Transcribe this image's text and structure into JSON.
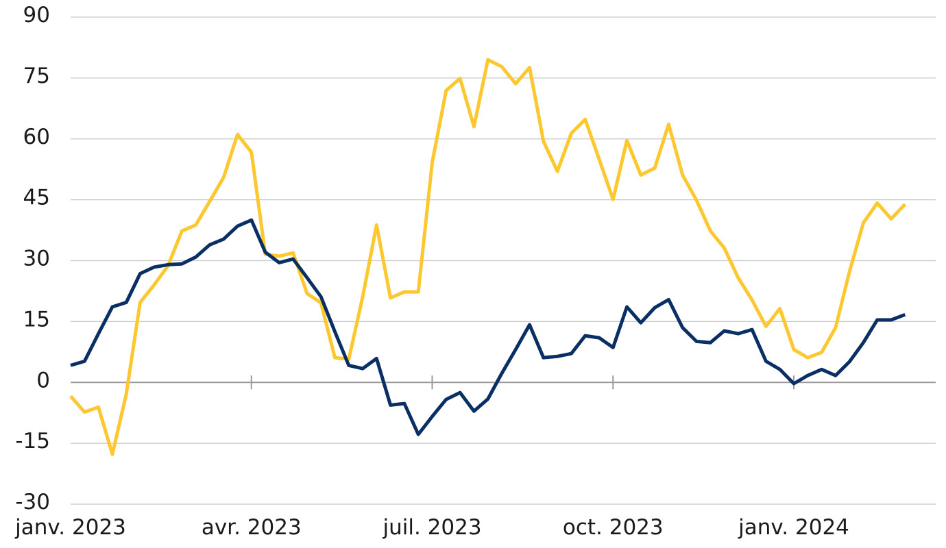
{
  "chart_data": {
    "type": "line",
    "categories": [
      "janv. 2023",
      null,
      null,
      null,
      null,
      null,
      null,
      null,
      null,
      null,
      null,
      null,
      null,
      "avr. 2023",
      null,
      null,
      null,
      null,
      null,
      null,
      null,
      null,
      null,
      null,
      null,
      null,
      "juil. 2023",
      null,
      null,
      null,
      null,
      null,
      null,
      null,
      null,
      null,
      null,
      null,
      null,
      "oct. 2023",
      null,
      null,
      null,
      null,
      null,
      null,
      null,
      null,
      null,
      null,
      null,
      null,
      "janv. 2024",
      null,
      null,
      null,
      null,
      null,
      null,
      null,
      null
    ],
    "series": [
      {
        "color": "#0a2f64",
        "values": [
          4.2,
          5.2,
          12,
          18.6,
          19.7,
          26.8,
          28.4,
          29,
          29.2,
          30.9,
          33.9,
          35.3,
          38.5,
          40,
          32.1,
          29.5,
          30.4,
          25.8,
          21.1,
          12.5,
          4.2,
          3.4,
          5.9,
          -5.6,
          -5.2,
          -12.8,
          -8.4,
          -4.2,
          -2.5,
          -7.1,
          -4.1,
          2.2,
          8.1,
          14.2,
          6.1,
          6.4,
          7.1,
          11.5,
          11,
          8.6,
          18.6,
          14.7,
          18.4,
          20.4,
          13.5,
          10.1,
          9.8,
          12.7,
          12,
          13,
          5.2,
          3.2,
          -0.3,
          1.7,
          3.2,
          1.7,
          5.1,
          9.8,
          15.4,
          15.4,
          16.7
        ]
      },
      {
        "color": "#fdc82f",
        "values": [
          -3.4,
          -7.3,
          -6.1,
          -17.7,
          -2.9,
          19.7,
          24,
          28.7,
          37.3,
          38.8,
          44.6,
          50.5,
          61.1,
          56.7,
          31.6,
          31.1,
          31.9,
          21.9,
          19.6,
          6.1,
          5.7,
          21.1,
          38.8,
          20.8,
          22.3,
          22.3,
          54.2,
          71.9,
          74.9,
          63,
          79.5,
          77.8,
          73.6,
          77.6,
          59.4,
          52,
          61.4,
          64.8,
          55,
          45.1,
          59.6,
          51.1,
          52.8,
          63.6,
          51.1,
          44.9,
          37.3,
          33.1,
          25.8,
          20.3,
          13.8,
          18.2,
          8.1,
          6.1,
          7.4,
          13.5,
          27.3,
          39.3,
          44.2,
          40.3,
          43.9
        ]
      }
    ],
    "ylim": [
      -30,
      90
    ],
    "yticks": [
      -30,
      -15,
      0,
      15,
      30,
      45,
      60,
      75,
      90
    ],
    "grid": true
  }
}
